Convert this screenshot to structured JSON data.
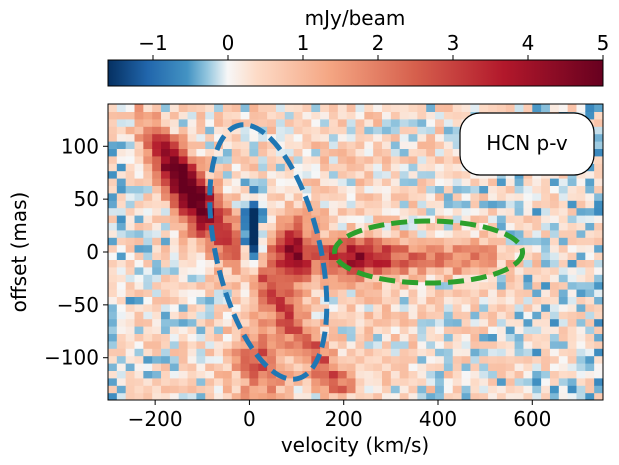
{
  "chart_data": {
    "type": "heatmap",
    "title": "HCN p-v",
    "xlabel": "velocity (km/s)",
    "ylabel": "offset (mas)",
    "xlim": [
      -300,
      750
    ],
    "ylim": [
      -140,
      140
    ],
    "xticks": [
      -200,
      0,
      200,
      400,
      600
    ],
    "xtick_labels": [
      "−200",
      "0",
      "200",
      "400",
      "600"
    ],
    "yticks": [
      100,
      50,
      0,
      -50,
      -100
    ],
    "ytick_labels": [
      "100",
      "50",
      "0",
      "−50",
      "−100"
    ],
    "colorbar": {
      "label": "mJy/beam",
      "range": [
        -1.6,
        5
      ],
      "ticks": [
        -1,
        0,
        1,
        2,
        3,
        4,
        5
      ],
      "tick_labels": [
        "−1",
        "0",
        "1",
        "2",
        "3",
        "4",
        "5"
      ],
      "colormap": "RdBu_r",
      "colors": [
        "#053061",
        "#2166ac",
        "#4393c3",
        "#92c5de",
        "#f7f7f7",
        "#fddbc7",
        "#f4a582",
        "#d6604d",
        "#b2182b",
        "#67001f"
      ],
      "placement": "top"
    },
    "ellipses": [
      {
        "name": "blue ellipse",
        "color": "#1f77b4",
        "style": "dashed",
        "center": [
          40,
          0
        ],
        "approx_extent": "velocity -90 to 170 km/s, offset -120 to 120 mas"
      },
      {
        "name": "green ellipse",
        "color": "#2ca02c",
        "style": "dashed",
        "center": [
          380,
          0
        ],
        "approx_extent": "velocity 180 to 580 km/s, offset -30 to 30 mas"
      }
    ],
    "emission_features": [
      {
        "name": "upper-left arm",
        "velocity": -150,
        "offset": 70,
        "peak_mJy_beam": 4.2
      },
      {
        "name": "central ridge",
        "velocity": 80,
        "offset": 0,
        "peak_mJy_beam": 4.4
      },
      {
        "name": "lower arm",
        "velocity": 10,
        "offset": -100,
        "peak_mJy_beam": 2.5
      },
      {
        "name": "red tail",
        "velocity": 300,
        "offset": -5,
        "peak_mJy_beam": 4.6
      },
      {
        "name": "absorption dip",
        "velocity": 0,
        "offset": 10,
        "peak_mJy_beam": -1.3
      }
    ]
  }
}
